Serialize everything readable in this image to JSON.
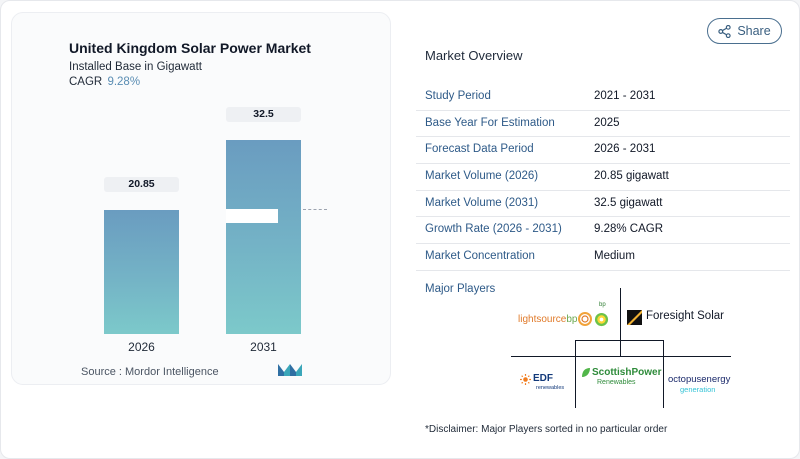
{
  "chart": {
    "title": "United Kingdom Solar Power Market",
    "subtitle": "Installed Base in Gigawatt",
    "cagr_label": "CAGR",
    "cagr_value": "9.28%",
    "source": "Source :  Mordor Intelligence"
  },
  "chart_data": {
    "type": "bar",
    "title": "United Kingdom Solar Power Market",
    "ylabel": "Installed Base in Gigawatt",
    "categories": [
      "2026",
      "2031"
    ],
    "values": [
      20.85,
      32.5
    ],
    "value_labels": [
      "20.85",
      "32.5"
    ],
    "ylim": [
      0,
      32.5
    ],
    "grid": false,
    "colors": [
      "#6a9cc0",
      "#7cc9ca"
    ]
  },
  "share": {
    "label": "Share",
    "icon": "share-icon"
  },
  "overview": {
    "title": "Market Overview",
    "rows": [
      {
        "key": "Study Period",
        "value": "2021 - 2031"
      },
      {
        "key": "Base Year For Estimation",
        "value": "2025"
      },
      {
        "key": "Forecast Data Period",
        "value": "2026 - 2031"
      },
      {
        "key": "Market Volume (2026)",
        "value": "20.85 gigawatt"
      },
      {
        "key": "Market Volume (2031)",
        "value": "32.5 gigawatt"
      },
      {
        "key": "Growth Rate (2026 - 2031)",
        "value": "9.28% CAGR"
      },
      {
        "key": "Market Concentration",
        "value": "Medium"
      }
    ]
  },
  "players": {
    "title": "Major Players",
    "logos": {
      "lightsource": {
        "text": "lightsource",
        "suffix": "bp",
        "bp_mark": "bp"
      },
      "foresight": {
        "text": "Foresight Solar"
      },
      "edf": {
        "text": "EDF",
        "sub": "renewables"
      },
      "scottish": {
        "line1": "ScottishPower",
        "line2": "Renewables"
      },
      "octopus": {
        "line1": "octopusenergy",
        "line2": "generation"
      }
    },
    "disclaimer": "*Disclaimer: Major Players sorted in no particular order"
  },
  "colors": {
    "accent_blue": "#2e5a88",
    "bar_top": "#6a9cc0",
    "bar_bottom": "#7cc9ca",
    "cagr": "#5a8db3"
  }
}
